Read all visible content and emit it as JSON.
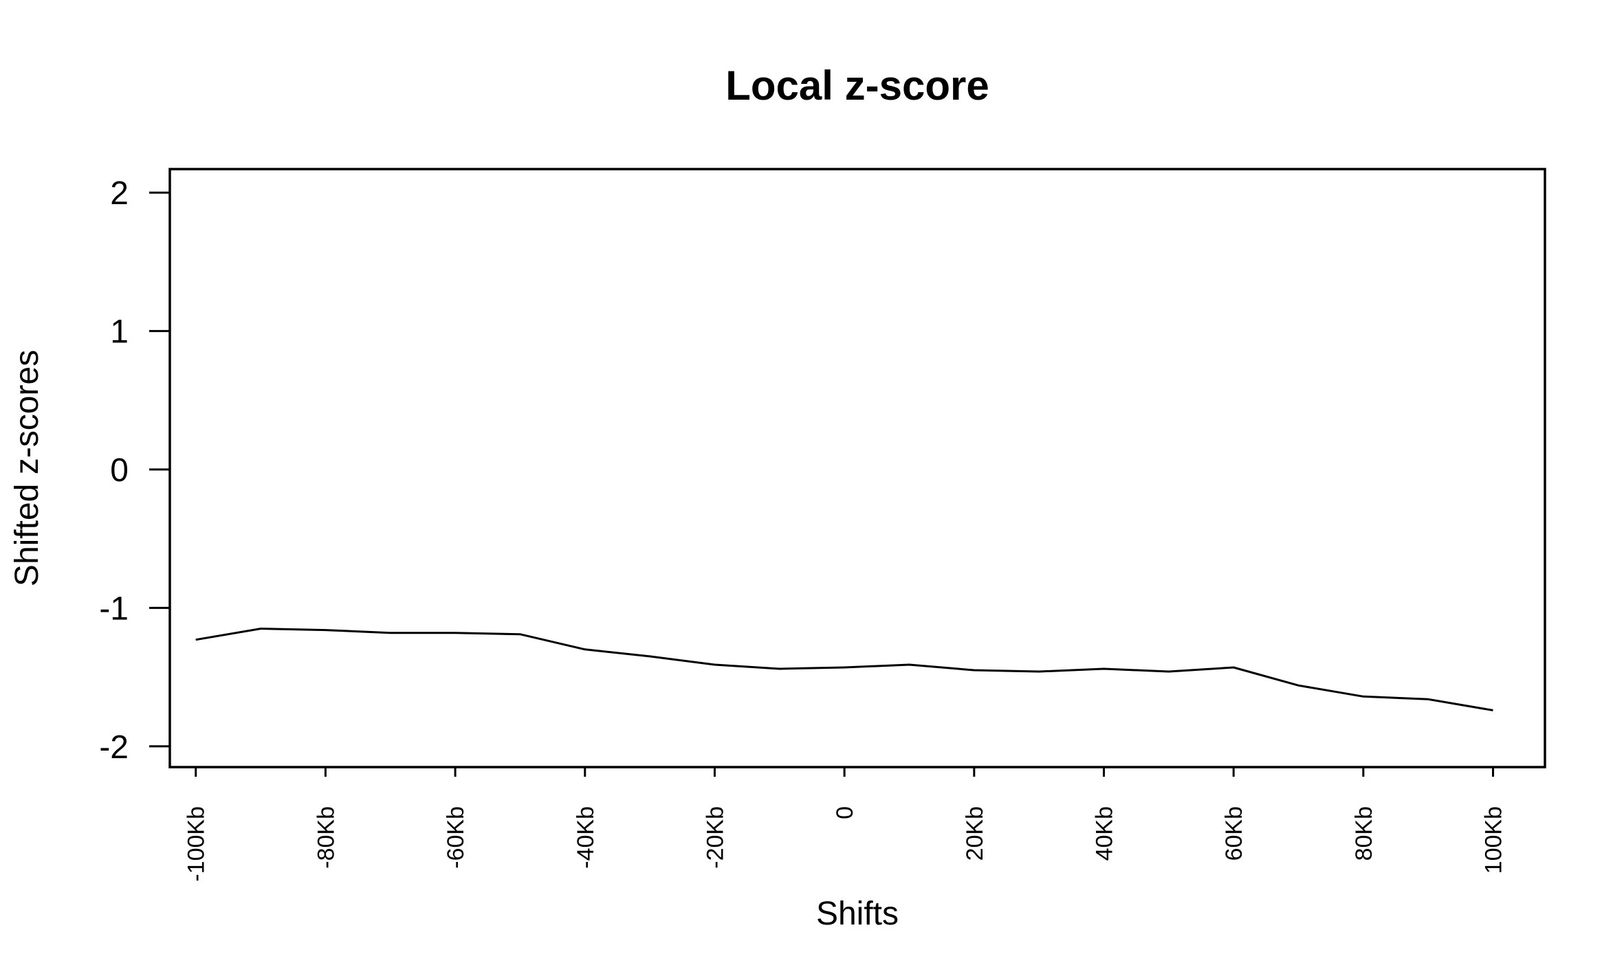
{
  "chart_data": {
    "type": "line",
    "title": "Local z-score",
    "xlabel": "Shifts",
    "ylabel": "Shifted z-scores",
    "ylim": [
      -2.15,
      2.17
    ],
    "xlim": [
      -104,
      108
    ],
    "yticks": [
      2,
      1,
      0,
      -1,
      -2
    ],
    "ytick_labels": [
      "2",
      "1",
      "0",
      "-1",
      "-2"
    ],
    "xticks": [
      -100,
      -80,
      -60,
      -40,
      -20,
      0,
      20,
      40,
      60,
      80,
      100
    ],
    "xtick_labels": [
      "-100Kb",
      "-80Kb",
      "-60Kb",
      "-40Kb",
      "-20Kb",
      "0",
      "20Kb",
      "40Kb",
      "60Kb",
      "80Kb",
      "100Kb"
    ],
    "grid": false,
    "legend": "none",
    "series": [
      {
        "color": "#000000",
        "x": [
          -100,
          -90,
          -80,
          -70,
          -60,
          -50,
          -40,
          -30,
          -20,
          -10,
          0,
          10,
          20,
          30,
          40,
          50,
          60,
          70,
          80,
          90,
          100
        ],
        "values": [
          -1.23,
          -1.15,
          -1.16,
          -1.18,
          -1.18,
          -1.19,
          -1.3,
          -1.35,
          -1.41,
          -1.44,
          -1.43,
          -1.41,
          -1.45,
          -1.46,
          -1.44,
          -1.46,
          -1.43,
          -1.56,
          -1.64,
          -1.66,
          -1.74
        ]
      }
    ]
  }
}
